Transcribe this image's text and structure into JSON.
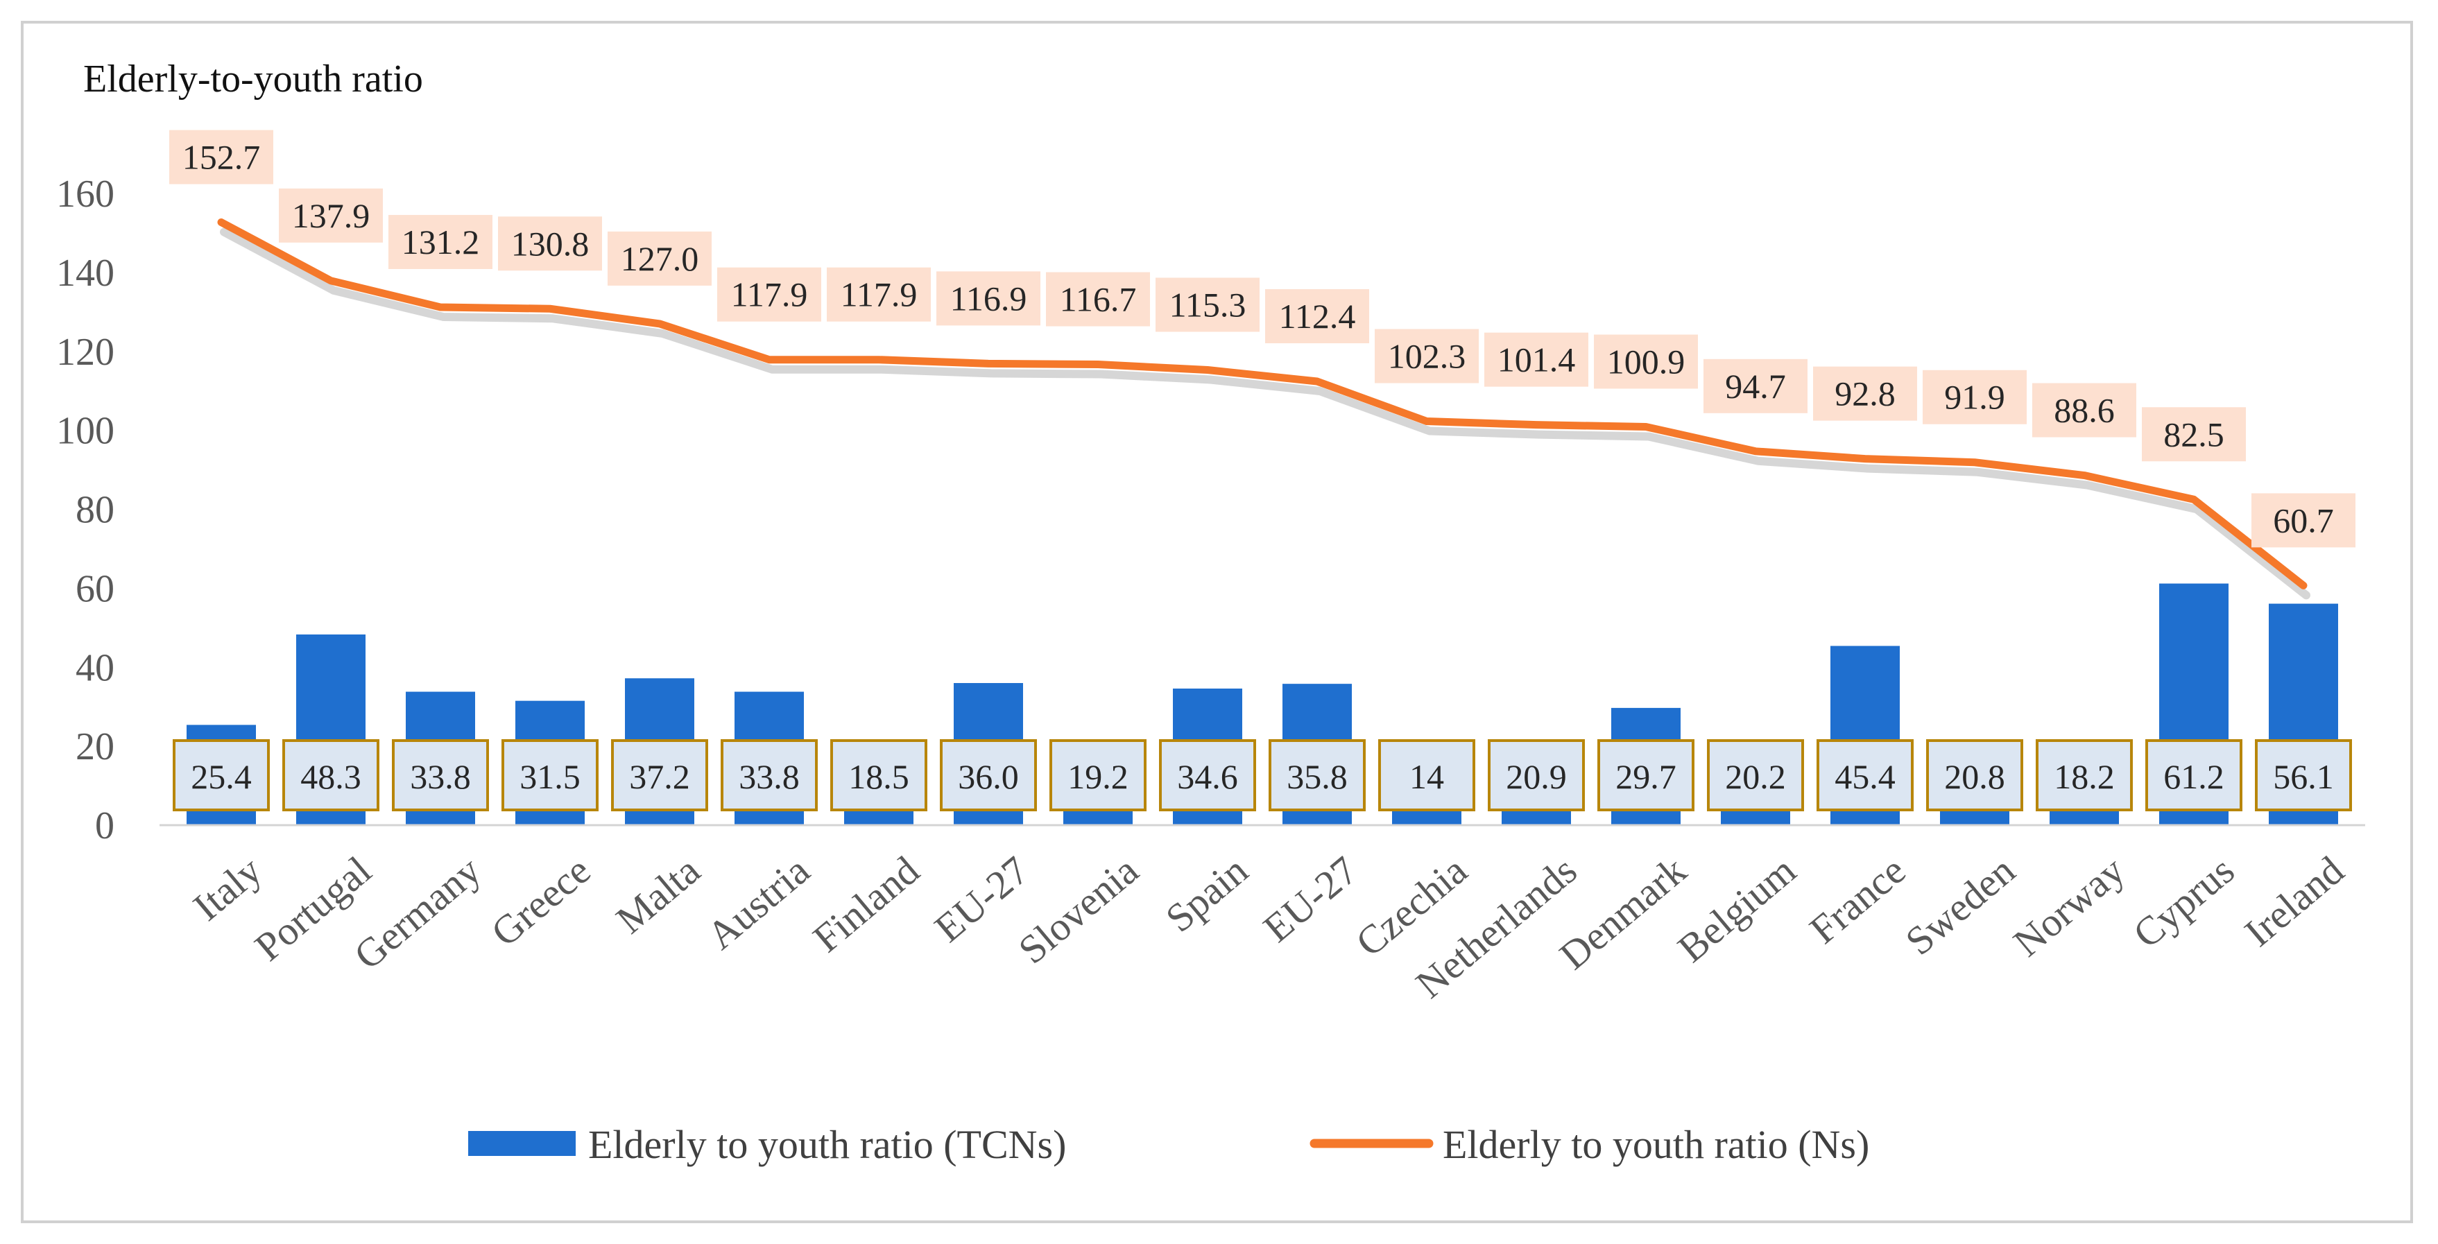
{
  "chart_data": {
    "type": "bar+line",
    "title": "Elderly-to-youth ratio",
    "xlabel": "",
    "ylabel": "Elderly-to-youth ratio",
    "ylim": [
      0,
      160
    ],
    "yticks": [
      "0",
      "20",
      "40",
      "60",
      "80",
      "100",
      "120",
      "140",
      "160"
    ],
    "categories": [
      "Italy",
      "Portugal",
      "Germany",
      "Greece",
      "Malta",
      "Austria",
      "Finland",
      "EU-27",
      "Slovenia",
      "Spain",
      "EU-27",
      "Czechia",
      "Netherlands",
      "Denmark",
      "Belgium",
      "France",
      "Sweden",
      "Norway",
      "Cyprus",
      "Ireland"
    ],
    "series": [
      {
        "name": "Elderly to youth ratio (TCNs)",
        "kind": "bar",
        "color": "#1f6fcf",
        "values": [
          25.4,
          48.3,
          33.8,
          31.5,
          37.2,
          33.8,
          18.5,
          36.0,
          19.2,
          34.6,
          35.8,
          14,
          20.9,
          29.7,
          20.2,
          45.4,
          20.8,
          18.2,
          61.2,
          56.1
        ],
        "labels": [
          "25.4",
          "48.3",
          "33.8",
          "31.5",
          "37.2",
          "33.8",
          "18.5",
          "36.0",
          "19.2",
          "34.6",
          "35.8",
          "14",
          "20.9",
          "29.7",
          "20.2",
          "45.4",
          "20.8",
          "18.2",
          "61.2",
          "56.1"
        ]
      },
      {
        "name": "Elderly to youth ratio (Ns)",
        "kind": "line",
        "color": "#f5782a",
        "values": [
          152.7,
          137.9,
          131.2,
          130.8,
          127.0,
          117.9,
          117.9,
          116.9,
          116.7,
          115.3,
          112.4,
          102.3,
          101.4,
          100.9,
          94.7,
          92.8,
          91.9,
          88.6,
          82.5,
          60.7
        ],
        "labels": [
          "152.7",
          "137.9",
          "131.2",
          "130.8",
          "127.0",
          "117.9",
          "117.9",
          "116.9",
          "116.7",
          "115.3",
          "112.4",
          "102.3",
          "101.4",
          "100.9",
          "94.7",
          "92.8",
          "91.9",
          "88.6",
          "82.5",
          "60.7"
        ]
      }
    ],
    "legend": "bottom-center",
    "grid": false
  }
}
